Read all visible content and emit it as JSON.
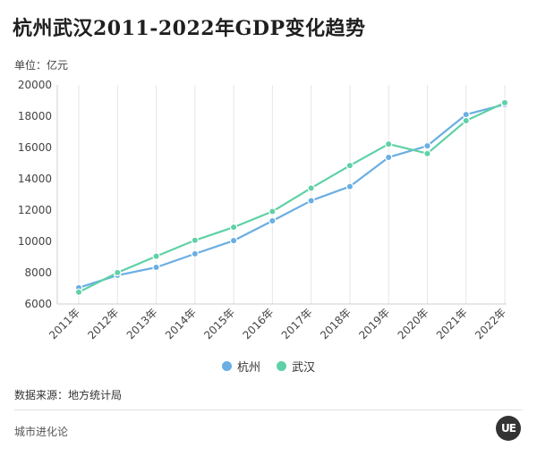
{
  "title": "杭州武汉2011-2022年GDP变化趋势",
  "unit_label": "单位：亿元",
  "legend": [
    {
      "name": "杭州",
      "color": "#6aaee3"
    },
    {
      "name": "武汉",
      "color": "#5fd1a6"
    }
  ],
  "source_label": "数据来源：地方统计局",
  "footer_brand": "城市进化论",
  "logo_text": "UE",
  "colors": {
    "hangzhou": "#6aaee3",
    "wuhan": "#5fd1a6",
    "grid": "#e6e6e6"
  },
  "chart_data": {
    "type": "line",
    "categories": [
      "2011年",
      "2012年",
      "2013年",
      "2014年",
      "2015年",
      "2016年",
      "2017年",
      "2018年",
      "2019年",
      "2020年",
      "2021年",
      "2022年"
    ],
    "series": [
      {
        "name": "杭州",
        "values": [
          7037,
          7834,
          8343,
          9206,
          10050,
          11314,
          12603,
          13509,
          15373,
          16106,
          18109,
          18753
        ]
      },
      {
        "name": "武汉",
        "values": [
          6756,
          8004,
          9051,
          10069,
          10906,
          11913,
          13410,
          14847,
          16223,
          15616,
          17717,
          18866
        ]
      }
    ],
    "ylim": [
      6000,
      20000
    ],
    "yticks": [
      6000,
      8000,
      10000,
      12000,
      14000,
      16000,
      18000,
      20000
    ],
    "xlabel": "",
    "ylabel": "",
    "grid": "vertical",
    "legend_position": "bottom"
  }
}
